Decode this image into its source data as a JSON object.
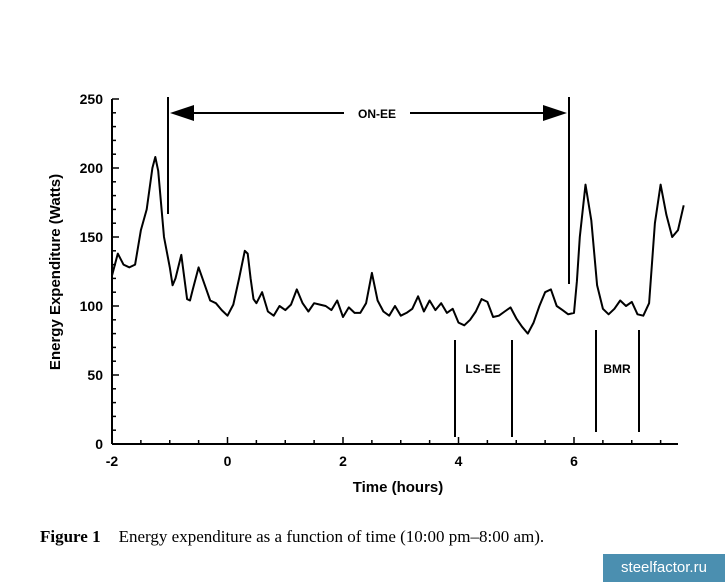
{
  "chart_data": {
    "type": "line",
    "xlabel": "Time (hours)",
    "ylabel": "Energy Expenditure (Watts)",
    "xlim": [
      -2,
      8
    ],
    "ylim": [
      0,
      250
    ],
    "x_ticks": [
      -2,
      0,
      2,
      4,
      6
    ],
    "y_ticks": [
      0,
      50,
      100,
      150,
      200,
      250
    ],
    "x": [
      -2.0,
      -1.9,
      -1.8,
      -1.7,
      -1.6,
      -1.5,
      -1.4,
      -1.3,
      -1.25,
      -1.2,
      -1.1,
      -1.0,
      -0.95,
      -0.9,
      -0.8,
      -0.7,
      -0.65,
      -0.6,
      -0.5,
      -0.4,
      -0.3,
      -0.3,
      -0.2,
      -0.1,
      0.0,
      0.1,
      0.2,
      0.3,
      0.35,
      0.4,
      0.45,
      0.5,
      0.6,
      0.7,
      0.8,
      0.9,
      1.0,
      1.1,
      1.2,
      1.3,
      1.4,
      1.5,
      1.6,
      1.7,
      1.8,
      1.9,
      2.0,
      2.1,
      2.2,
      2.3,
      2.4,
      2.5,
      2.6,
      2.7,
      2.8,
      2.9,
      3.0,
      3.1,
      3.2,
      3.3,
      3.4,
      3.5,
      3.6,
      3.7,
      3.8,
      3.9,
      4.0,
      4.1,
      4.2,
      4.3,
      4.4,
      4.5,
      4.6,
      4.7,
      4.8,
      4.9,
      5.0,
      5.1,
      5.2,
      5.3,
      5.4,
      5.5,
      5.6,
      5.7,
      5.8,
      5.9,
      6.0,
      6.05,
      6.1,
      6.2,
      6.3,
      6.4,
      6.5,
      6.6,
      6.7,
      6.8,
      6.9,
      7.0,
      7.1,
      7.2,
      7.3,
      7.4,
      7.5,
      7.6,
      7.7,
      7.8,
      7.9
    ],
    "values": [
      122,
      138,
      130,
      128,
      130,
      155,
      170,
      200,
      208,
      198,
      150,
      128,
      115,
      120,
      137,
      105,
      104,
      112,
      128,
      116,
      104,
      104,
      102,
      97,
      93,
      101,
      120,
      140,
      138,
      120,
      105,
      102,
      110,
      96,
      93,
      100,
      97,
      101,
      112,
      102,
      96,
      102,
      101,
      100,
      97,
      104,
      92,
      99,
      95,
      95,
      102,
      124,
      104,
      96,
      93,
      100,
      93,
      95,
      98,
      107,
      96,
      104,
      97,
      102,
      95,
      98,
      88,
      86,
      90,
      96,
      105,
      103,
      92,
      93,
      96,
      99,
      91,
      85,
      80,
      88,
      100,
      110,
      112,
      100,
      97,
      94,
      95,
      118,
      150,
      188,
      162,
      115,
      98,
      94,
      98,
      104,
      100,
      103,
      94,
      93,
      102,
      160,
      188,
      166,
      150,
      155,
      173
    ],
    "annotations": [
      "ON-EE",
      "LS-EE",
      "BMR"
    ]
  },
  "caption": {
    "label": "Figure 1",
    "text": "Energy expenditure as a function of time (10:00 pm–8:00 am)."
  },
  "watermark": "steelfactor.ru"
}
